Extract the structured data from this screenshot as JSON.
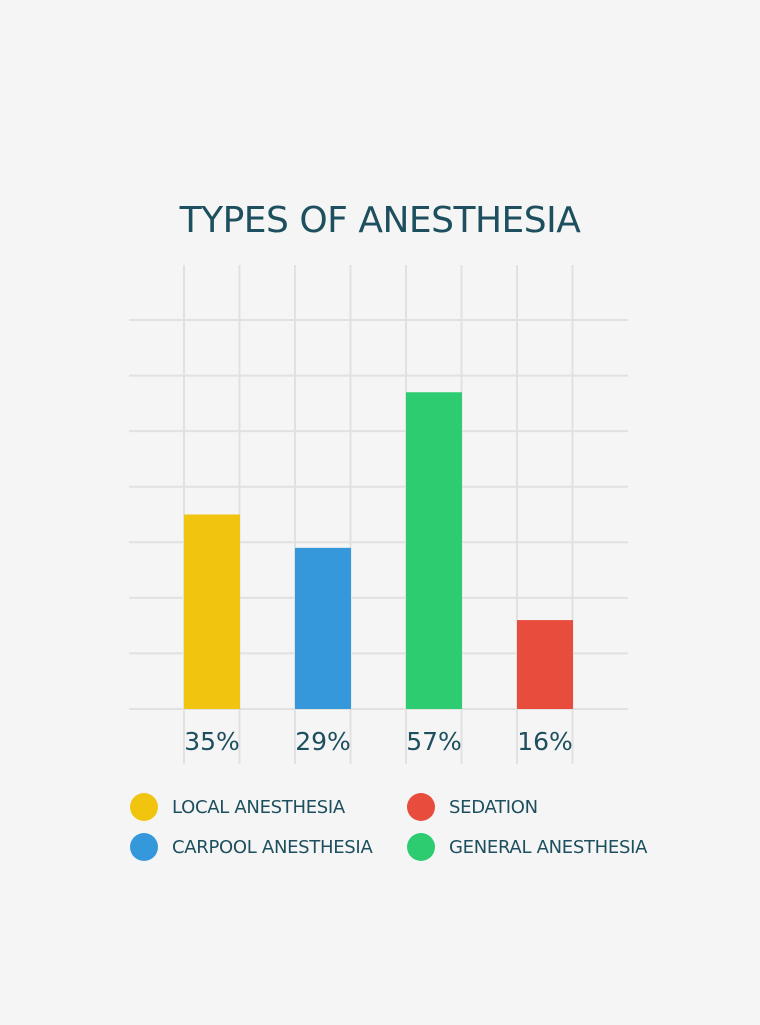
{
  "chart_data": {
    "type": "bar",
    "title": "TYPES OF ANESTHESIA",
    "categories": [
      "LOCAL ANESTHESIA",
      "CARPOOL ANESTHESIA",
      "GENERAL ANESTHESIA",
      "SEDATION"
    ],
    "values": [
      35,
      29,
      57,
      16
    ],
    "value_labels": [
      "35%",
      "29%",
      "57%",
      "16%"
    ],
    "colors": [
      "#f1c40f",
      "#3498db",
      "#2ecc71",
      "#e74c3c"
    ],
    "ylim": [
      0,
      70
    ],
    "grid": true,
    "legend": [
      {
        "label": "LOCAL ANESTHESIA",
        "color": "#f1c40f"
      },
      {
        "label": "SEDATION",
        "color": "#e74c3c"
      },
      {
        "label": "CARPOOL ANESTHESIA",
        "color": "#3498db"
      },
      {
        "label": "GENERAL ANESTHESIA",
        "color": "#2ecc71"
      }
    ],
    "legend_position": "bottom"
  }
}
